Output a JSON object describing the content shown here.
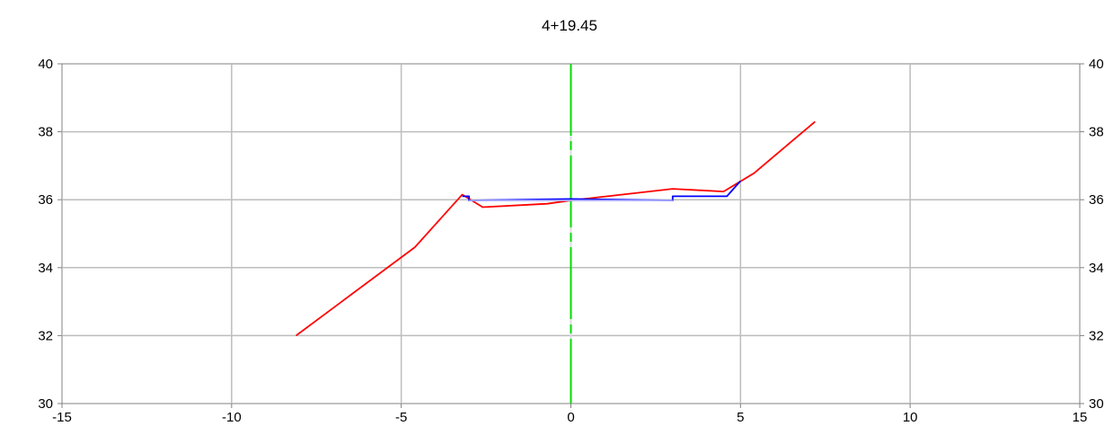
{
  "chart_data": {
    "type": "line",
    "title": "4+19.45",
    "xlim": [
      -15,
      15
    ],
    "ylim": [
      30,
      40
    ],
    "x_ticks": [
      "-15",
      "-10",
      "-5",
      "0",
      "5",
      "10",
      "15"
    ],
    "y_ticks": [
      "30",
      "32",
      "34",
      "36",
      "38",
      "40"
    ],
    "grid": true,
    "right_axis_labels": true,
    "centerline": {
      "x": 0,
      "color": "#00dd00",
      "style": "dashed"
    },
    "series": [
      {
        "color": "#ff0000",
        "points": [
          [
            -8.1,
            32.0
          ],
          [
            -4.6,
            34.6
          ],
          [
            -3.2,
            36.15
          ],
          [
            -2.6,
            35.78
          ],
          [
            -0.7,
            35.88
          ],
          [
            0.0,
            35.98
          ],
          [
            3.0,
            36.32
          ],
          [
            4.5,
            36.24
          ],
          [
            5.4,
            36.78
          ],
          [
            7.2,
            38.3
          ]
        ]
      },
      {
        "color": "#0000ff",
        "points": [
          [
            -3.2,
            36.1
          ],
          [
            -3.0,
            36.1
          ],
          [
            -3.0,
            35.98
          ],
          [
            0.0,
            36.02
          ],
          [
            3.0,
            35.98
          ],
          [
            3.0,
            36.1
          ],
          [
            4.6,
            36.1
          ],
          [
            5.0,
            36.55
          ]
        ]
      },
      {
        "color": "#aaaaff",
        "points": [
          [
            -3.0,
            35.98
          ],
          [
            3.0,
            35.98
          ]
        ]
      }
    ]
  }
}
